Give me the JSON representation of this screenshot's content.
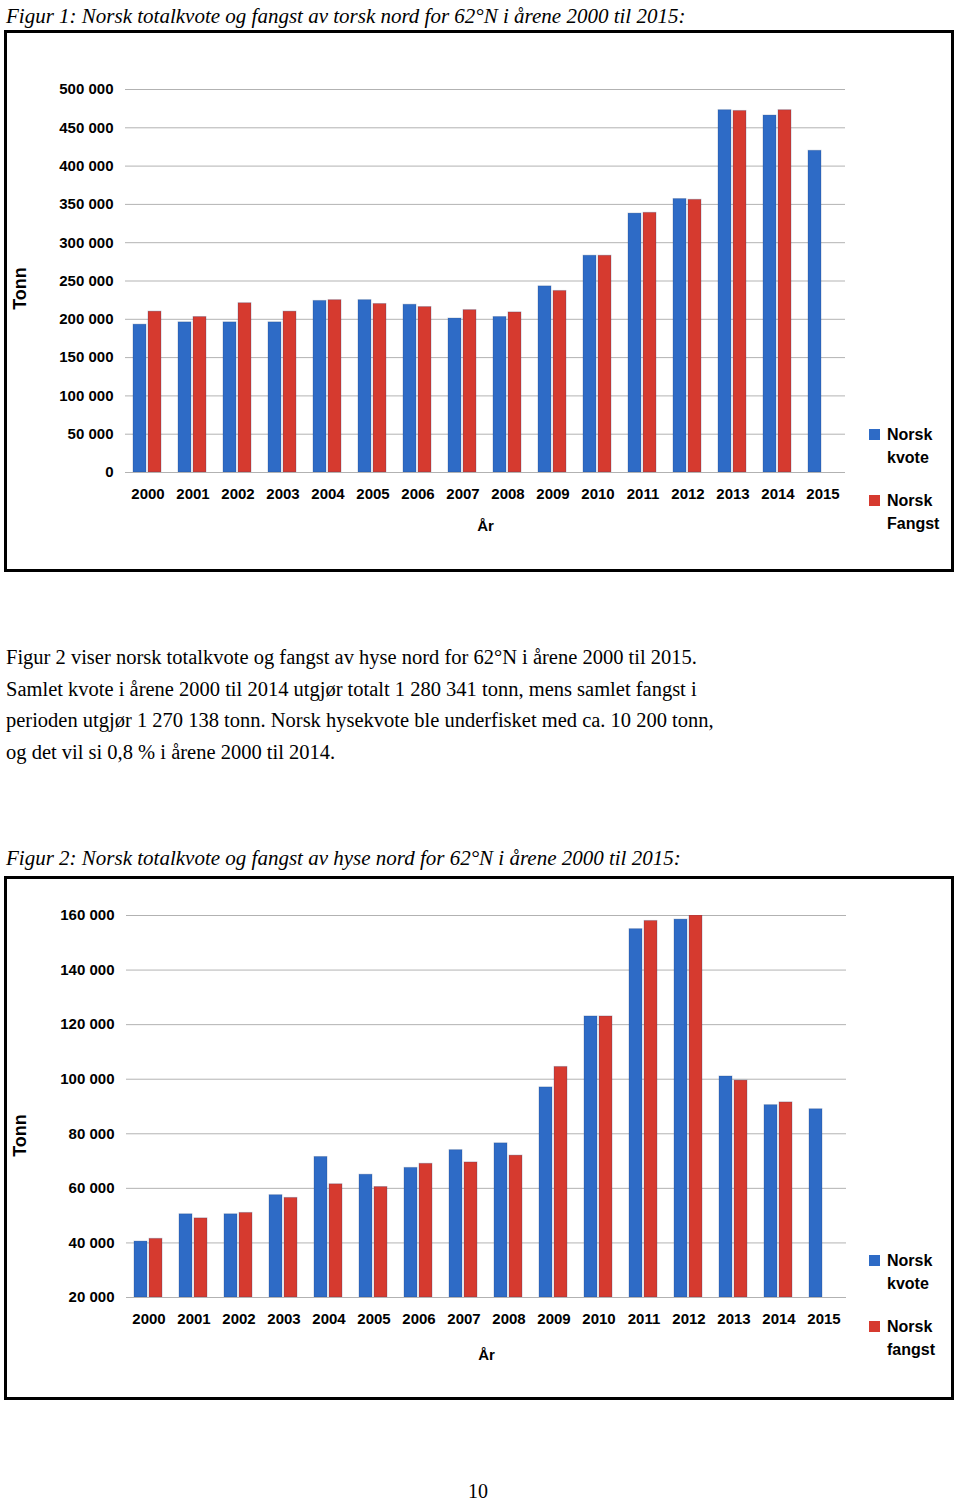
{
  "chart_data": [
    {
      "type": "bar",
      "title": "Figur 1: Norsk totalkvote og fangst av torsk nord for 62°N i årene 2000 til 2015:",
      "x_label": "År",
      "y_label": "Tonn",
      "categories": [
        "2000",
        "2001",
        "2002",
        "2003",
        "2004",
        "2005",
        "2006",
        "2007",
        "2008",
        "2009",
        "2010",
        "2011",
        "2012",
        "2013",
        "2014",
        "2015"
      ],
      "series": [
        {
          "name": "Norsk kvote",
          "color": "#2e6bc6",
          "values": [
            193000,
            196000,
            196000,
            196000,
            224000,
            225000,
            219000,
            201000,
            203000,
            243000,
            283000,
            338000,
            357000,
            473000,
            466000,
            420000
          ]
        },
        {
          "name": "Norsk Fangst",
          "color": "#d63a2f",
          "values": [
            210000,
            203000,
            221000,
            210000,
            225000,
            220000,
            216000,
            212000,
            209000,
            237000,
            283000,
            339000,
            356000,
            472000,
            473000,
            null
          ]
        }
      ],
      "ylim": [
        0,
        500000
      ],
      "yticks": [
        0,
        {
          "value": 50000,
          "label": "50 000"
        },
        {
          "value": 100000,
          "label": "100 000"
        },
        {
          "value": 150000,
          "label": "150 000"
        },
        {
          "value": 200000,
          "label": "200 000"
        },
        {
          "value": 250000,
          "label": "250 000"
        },
        {
          "value": 300000,
          "label": "300 000"
        },
        {
          "value": 350000,
          "label": "350 000"
        },
        {
          "value": 400000,
          "label": "400 000"
        },
        {
          "value": 450000,
          "label": "450 000"
        },
        {
          "value": 500000,
          "label": "500 000"
        }
      ],
      "grid": true,
      "legend": "right"
    },
    {
      "type": "bar",
      "title": "Figur 2: Norsk totalkvote og fangst av hyse nord for 62°N i årene 2000 til 2015:",
      "x_label": "År",
      "y_label": "Tonn",
      "categories": [
        "2000",
        "2001",
        "2002",
        "2003",
        "2004",
        "2005",
        "2006",
        "2007",
        "2008",
        "2009",
        "2010",
        "2011",
        "2012",
        "2013",
        "2014",
        "2015"
      ],
      "series": [
        {
          "name": "Norsk kvote",
          "color": "#2e6bc6",
          "values": [
            40500,
            50500,
            50500,
            57500,
            71500,
            65000,
            67500,
            74000,
            76500,
            97000,
            123000,
            155000,
            158500,
            101000,
            90500,
            89000
          ]
        },
        {
          "name": "Norsk fangst",
          "color": "#d63a2f",
          "values": [
            41500,
            49000,
            51000,
            56500,
            61500,
            60500,
            69000,
            69500,
            72000,
            104500,
            123000,
            158000,
            160000,
            99500,
            91500,
            null
          ]
        }
      ],
      "ylim": [
        20000,
        160000
      ],
      "yticks": [
        {
          "value": 20000,
          "label": "20 000"
        },
        {
          "value": 40000,
          "label": "40 000"
        },
        {
          "value": 60000,
          "label": "60 000"
        },
        {
          "value": 80000,
          "label": "80 000"
        },
        {
          "value": 100000,
          "label": "100 000"
        },
        {
          "value": 120000,
          "label": "120 000"
        },
        {
          "value": 140000,
          "label": "140 000"
        },
        {
          "value": 160000,
          "label": "160 000"
        }
      ],
      "grid": true,
      "legend": "right"
    }
  ],
  "paragraph": [
    "Figur 2 viser norsk totalkvote og fangst av hyse nord for 62°N i årene 2000 til 2015.",
    "Samlet kvote i årene 2000 til 2014 utgjør totalt 1 280 341 tonn, mens samlet fangst i",
    "perioden utgjør 1 270 138 tonn. Norsk hysekvote ble underfisket med ca. 10 200 tonn,",
    "og det vil si 0,8 % i årene 2000 til 2014."
  ],
  "page_number": 10
}
